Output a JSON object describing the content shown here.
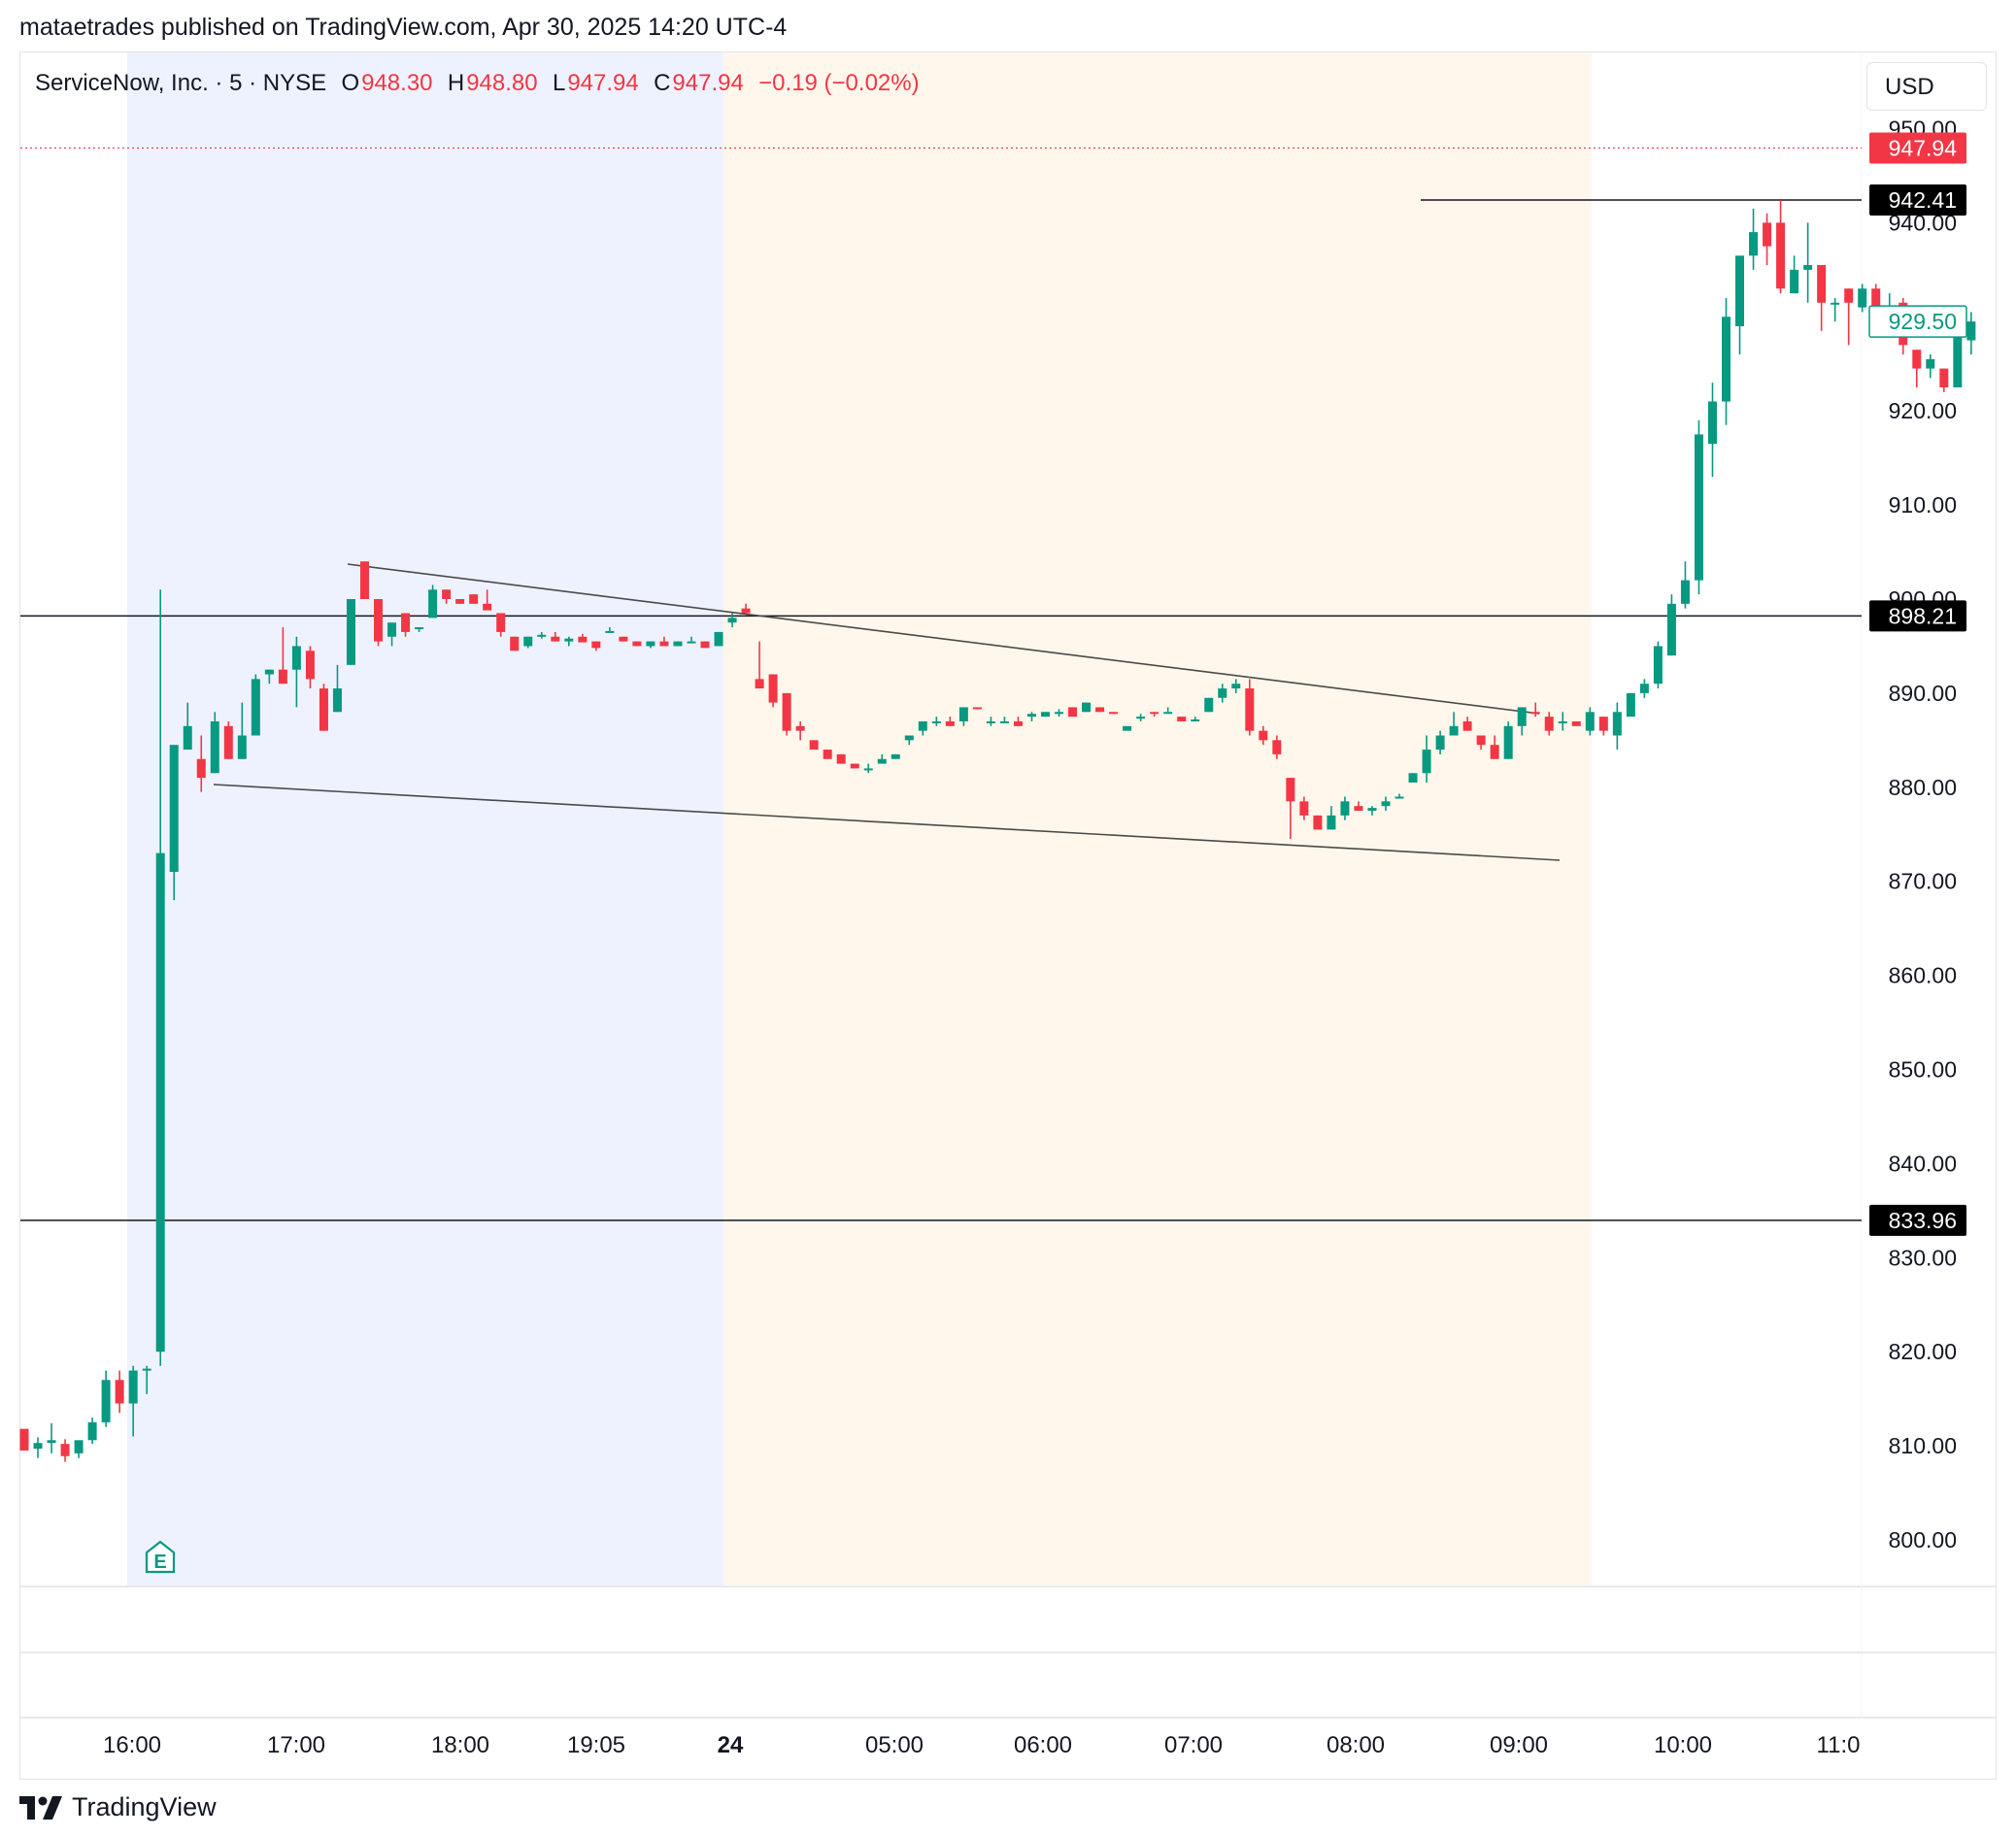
{
  "header": {
    "publish_text": "mataetrades published on TradingView.com, Apr 30, 2025 14:20 UTC-4"
  },
  "legend": {
    "symbol": "ServiceNow, Inc. · 5 · NYSE",
    "open_label": "O",
    "open_value": "948.30",
    "high_label": "H",
    "high_value": "948.80",
    "low_label": "L",
    "low_value": "947.94",
    "close_label": "C",
    "close_value": "947.94",
    "change": "−0.19 (−0.02%)"
  },
  "currency": "USD",
  "footer": {
    "brand": "TradingView"
  },
  "colors": {
    "up": "#089981",
    "down": "#f23645",
    "session_overnight": "#eef2fe",
    "session_premarket": "#fff7ec"
  },
  "chart_data": {
    "type": "candlestick",
    "ylim": [
      795,
      957
    ],
    "y_ticks": [
      "800.00",
      "810.00",
      "820.00",
      "830.00",
      "840.00",
      "850.00",
      "860.00",
      "870.00",
      "880.00",
      "890.00",
      "900.00",
      "910.00",
      "920.00",
      "930.00",
      "940.00",
      "950.00"
    ],
    "x_ticks": [
      "16:00",
      "17:00",
      "18:00",
      "19:05",
      "24",
      "05:00",
      "06:00",
      "07:00",
      "08:00",
      "09:00",
      "10:00",
      "11:0"
    ],
    "price_labels": [
      {
        "value": 947.94,
        "text": "947.94",
        "style": "last-price"
      },
      {
        "value": 942.41,
        "text": "942.41",
        "style": "level"
      },
      {
        "value": 929.5,
        "text": "929.50",
        "style": "outline"
      },
      {
        "value": 898.21,
        "text": "898.21",
        "style": "level"
      },
      {
        "value": 833.96,
        "text": "833.96",
        "style": "level"
      }
    ],
    "horizontal_levels": [
      942.41,
      898.21,
      833.96
    ],
    "marker": "E",
    "candles": [
      [
        811.8,
        811.8,
        809.5,
        809.5
      ],
      [
        809.7,
        810.9,
        808.7,
        810.3
      ],
      [
        810.3,
        812.4,
        809.2,
        810.6
      ],
      [
        810.2,
        810.7,
        808.3,
        808.9
      ],
      [
        809.2,
        810.5,
        808.7,
        810.6
      ],
      [
        810.6,
        813.0,
        810.2,
        812.5
      ],
      [
        812.5,
        818.0,
        812.0,
        817.0
      ],
      [
        817.0,
        818.0,
        813.5,
        814.5
      ],
      [
        814.5,
        818.5,
        811.0,
        818.0
      ],
      [
        818.0,
        818.5,
        815.5,
        818.2
      ],
      [
        820.0,
        901.0,
        818.5,
        873.0
      ],
      [
        871.0,
        884.5,
        868.0,
        884.5
      ],
      [
        884.0,
        889.0,
        884.0,
        886.5
      ],
      [
        883.0,
        885.5,
        879.5,
        881.0
      ],
      [
        881.5,
        888.0,
        881.5,
        887.0
      ],
      [
        886.5,
        887.0,
        883.0,
        883.0
      ],
      [
        883.0,
        889.0,
        883.0,
        885.5
      ],
      [
        885.5,
        892.0,
        885.5,
        891.5
      ],
      [
        892.0,
        892.5,
        891.0,
        892.5
      ],
      [
        892.5,
        897.0,
        891.0,
        891.0
      ],
      [
        892.5,
        896.0,
        888.5,
        895.0
      ],
      [
        894.5,
        895.0,
        890.5,
        891.5
      ],
      [
        890.5,
        891.0,
        886.0,
        886.0
      ],
      [
        888.0,
        893.0,
        888.0,
        890.5
      ],
      [
        893.0,
        898.5,
        893.0,
        900.0
      ],
      [
        904.0,
        904.0,
        900.0,
        900.0
      ],
      [
        900.0,
        900.0,
        895.0,
        895.5
      ],
      [
        896.0,
        896.0,
        895.0,
        897.5
      ],
      [
        898.5,
        898.5,
        896.0,
        896.5
      ],
      [
        897.0,
        897.0,
        896.5,
        897.0
      ],
      [
        898.0,
        901.5,
        898.0,
        901.0
      ],
      [
        901.0,
        901.0,
        899.5,
        900.0
      ],
      [
        900.0,
        900.0,
        899.5,
        899.5
      ],
      [
        900.5,
        900.5,
        899.5,
        899.5
      ],
      [
        899.5,
        901.0,
        899.0,
        898.8
      ],
      [
        898.5,
        898.5,
        896.0,
        896.5
      ],
      [
        896.0,
        896.0,
        894.5,
        894.5
      ],
      [
        895.0,
        896.0,
        894.8,
        896.0
      ],
      [
        896.0,
        896.5,
        895.8,
        896.2
      ],
      [
        896.0,
        896.5,
        895.5,
        895.5
      ],
      [
        895.5,
        896.0,
        895.0,
        895.8
      ],
      [
        896.0,
        896.3,
        895.5,
        895.4
      ],
      [
        895.5,
        895.5,
        894.5,
        894.8
      ],
      [
        896.6,
        897.0,
        896.4,
        896.6
      ],
      [
        896.0,
        896.0,
        895.5,
        895.5
      ],
      [
        895.5,
        895.5,
        895.0,
        895.0
      ],
      [
        895.0,
        895.5,
        894.8,
        895.5
      ],
      [
        895.5,
        896.0,
        895.0,
        895.0
      ],
      [
        895.0,
        895.5,
        895.0,
        895.5
      ],
      [
        895.5,
        896.0,
        895.5,
        895.5
      ],
      [
        895.5,
        895.5,
        895.0,
        894.8
      ],
      [
        895.0,
        896.5,
        895.0,
        896.5
      ],
      [
        897.5,
        898.5,
        897.0,
        898.0
      ],
      [
        899.0,
        899.5,
        898.5,
        898.5
      ],
      [
        891.5,
        895.5,
        890.5,
        890.5
      ],
      [
        892.0,
        892.0,
        888.5,
        889.0
      ],
      [
        890.0,
        890.0,
        885.5,
        886.0
      ],
      [
        886.5,
        887.0,
        885.0,
        886.0
      ],
      [
        885.0,
        885.0,
        884.5,
        884.0
      ],
      [
        884.0,
        884.0,
        883.0,
        883.0
      ],
      [
        883.5,
        883.5,
        882.5,
        882.5
      ],
      [
        882.5,
        882.5,
        882.0,
        882.0
      ],
      [
        882.0,
        882.5,
        881.5,
        882.0
      ],
      [
        882.5,
        883.5,
        882.5,
        883.0
      ],
      [
        883.0,
        883.5,
        883.0,
        883.5
      ],
      [
        885.0,
        885.5,
        884.5,
        885.5
      ],
      [
        886.0,
        887.0,
        885.5,
        887.0
      ],
      [
        887.0,
        887.5,
        886.5,
        887.0
      ],
      [
        887.0,
        887.5,
        886.5,
        886.5
      ],
      [
        887.0,
        888.5,
        886.5,
        888.5
      ],
      [
        888.5,
        888.5,
        888.3,
        888.3
      ],
      [
        887.0,
        887.5,
        886.5,
        887.0
      ],
      [
        887.0,
        887.5,
        886.8,
        887.0
      ],
      [
        887.0,
        887.5,
        886.5,
        886.5
      ],
      [
        887.5,
        888.0,
        887.0,
        887.8
      ],
      [
        887.5,
        888.0,
        887.5,
        888.0
      ],
      [
        888.0,
        888.3,
        887.5,
        888.0
      ],
      [
        888.5,
        888.5,
        887.5,
        887.5
      ],
      [
        888.0,
        889.0,
        888.0,
        889.0
      ],
      [
        888.5,
        888.5,
        888.0,
        888.0
      ],
      [
        888.0,
        888.0,
        887.8,
        887.8
      ],
      [
        886.0,
        886.0,
        886.0,
        886.5
      ],
      [
        887.5,
        887.8,
        887.0,
        887.5
      ],
      [
        888.0,
        888.0,
        887.5,
        887.8
      ],
      [
        888.0,
        888.5,
        888.0,
        888.0
      ],
      [
        887.5,
        887.5,
        887.0,
        887.0
      ],
      [
        887.0,
        887.5,
        887.0,
        887.2
      ],
      [
        888.0,
        889.5,
        888.0,
        889.5
      ],
      [
        889.5,
        891.0,
        889.0,
        890.5
      ],
      [
        890.5,
        891.5,
        890.0,
        891.0
      ],
      [
        890.5,
        891.5,
        885.5,
        886.0
      ],
      [
        886.0,
        886.5,
        884.5,
        885.0
      ],
      [
        885.0,
        885.5,
        883.0,
        883.5
      ],
      [
        881.0,
        881.0,
        874.5,
        878.5
      ],
      [
        878.5,
        879.0,
        876.5,
        877.0
      ],
      [
        877.0,
        877.0,
        875.5,
        875.5
      ],
      [
        875.5,
        878.0,
        875.5,
        877.0
      ],
      [
        877.0,
        879.0,
        876.5,
        878.5
      ],
      [
        878.0,
        878.5,
        877.5,
        877.5
      ],
      [
        877.5,
        878.0,
        877.0,
        877.8
      ],
      [
        878.0,
        879.0,
        877.5,
        878.5
      ],
      [
        879.0,
        879.3,
        878.8,
        879.0
      ],
      [
        880.5,
        881.5,
        880.5,
        881.5
      ],
      [
        881.5,
        885.5,
        880.5,
        884.0
      ],
      [
        884.0,
        886.0,
        883.5,
        885.5
      ],
      [
        885.5,
        888.0,
        885.5,
        886.5
      ],
      [
        887.0,
        887.5,
        886.0,
        886.0
      ],
      [
        885.5,
        885.5,
        884.0,
        884.5
      ],
      [
        884.5,
        885.5,
        883.0,
        883.0
      ],
      [
        883.0,
        887.0,
        883.0,
        886.5
      ],
      [
        886.5,
        888.5,
        885.5,
        888.5
      ],
      [
        888.0,
        889.0,
        887.5,
        887.8
      ],
      [
        887.5,
        888.0,
        885.5,
        886.0
      ],
      [
        887.0,
        888.0,
        886.0,
        887.0
      ],
      [
        887.0,
        887.0,
        886.5,
        886.5
      ],
      [
        886.0,
        888.5,
        885.5,
        888.0
      ],
      [
        887.5,
        887.5,
        885.5,
        886.0
      ],
      [
        885.5,
        889.0,
        884.0,
        888.0
      ],
      [
        887.5,
        890.0,
        887.5,
        890.0
      ],
      [
        890.0,
        891.5,
        889.5,
        891.0
      ],
      [
        891.0,
        895.5,
        890.5,
        895.0
      ],
      [
        894.0,
        900.5,
        894.0,
        899.5
      ],
      [
        899.5,
        904.0,
        899.0,
        902.0
      ],
      [
        902.0,
        919.0,
        900.5,
        917.5
      ],
      [
        916.5,
        923.0,
        913.0,
        921.0
      ],
      [
        921.0,
        932.0,
        918.5,
        930.0
      ],
      [
        929.0,
        936.0,
        926.0,
        936.5
      ],
      [
        936.5,
        941.5,
        935.0,
        939.0
      ],
      [
        940.0,
        941.0,
        935.5,
        937.5
      ],
      [
        940.0,
        942.4,
        932.5,
        933.0
      ],
      [
        932.5,
        936.5,
        932.5,
        935.0
      ],
      [
        935.0,
        940.0,
        931.5,
        935.5
      ],
      [
        935.5,
        935.5,
        928.5,
        931.5
      ],
      [
        931.5,
        932.0,
        929.5,
        931.5
      ],
      [
        933.0,
        933.0,
        927.0,
        931.5
      ],
      [
        931.0,
        933.5,
        930.5,
        933.0
      ],
      [
        933.0,
        933.5,
        929.5,
        929.5
      ],
      [
        929.5,
        932.5,
        929.0,
        931.0
      ],
      [
        931.5,
        932.0,
        926.0,
        927.0
      ],
      [
        926.5,
        926.5,
        922.5,
        924.5
      ],
      [
        924.5,
        926.0,
        923.5,
        925.5
      ],
      [
        924.5,
        924.5,
        922.0,
        922.5
      ],
      [
        922.5,
        927.5,
        922.5,
        928.0
      ],
      [
        927.5,
        930.5,
        926.0,
        929.5
      ]
    ]
  }
}
